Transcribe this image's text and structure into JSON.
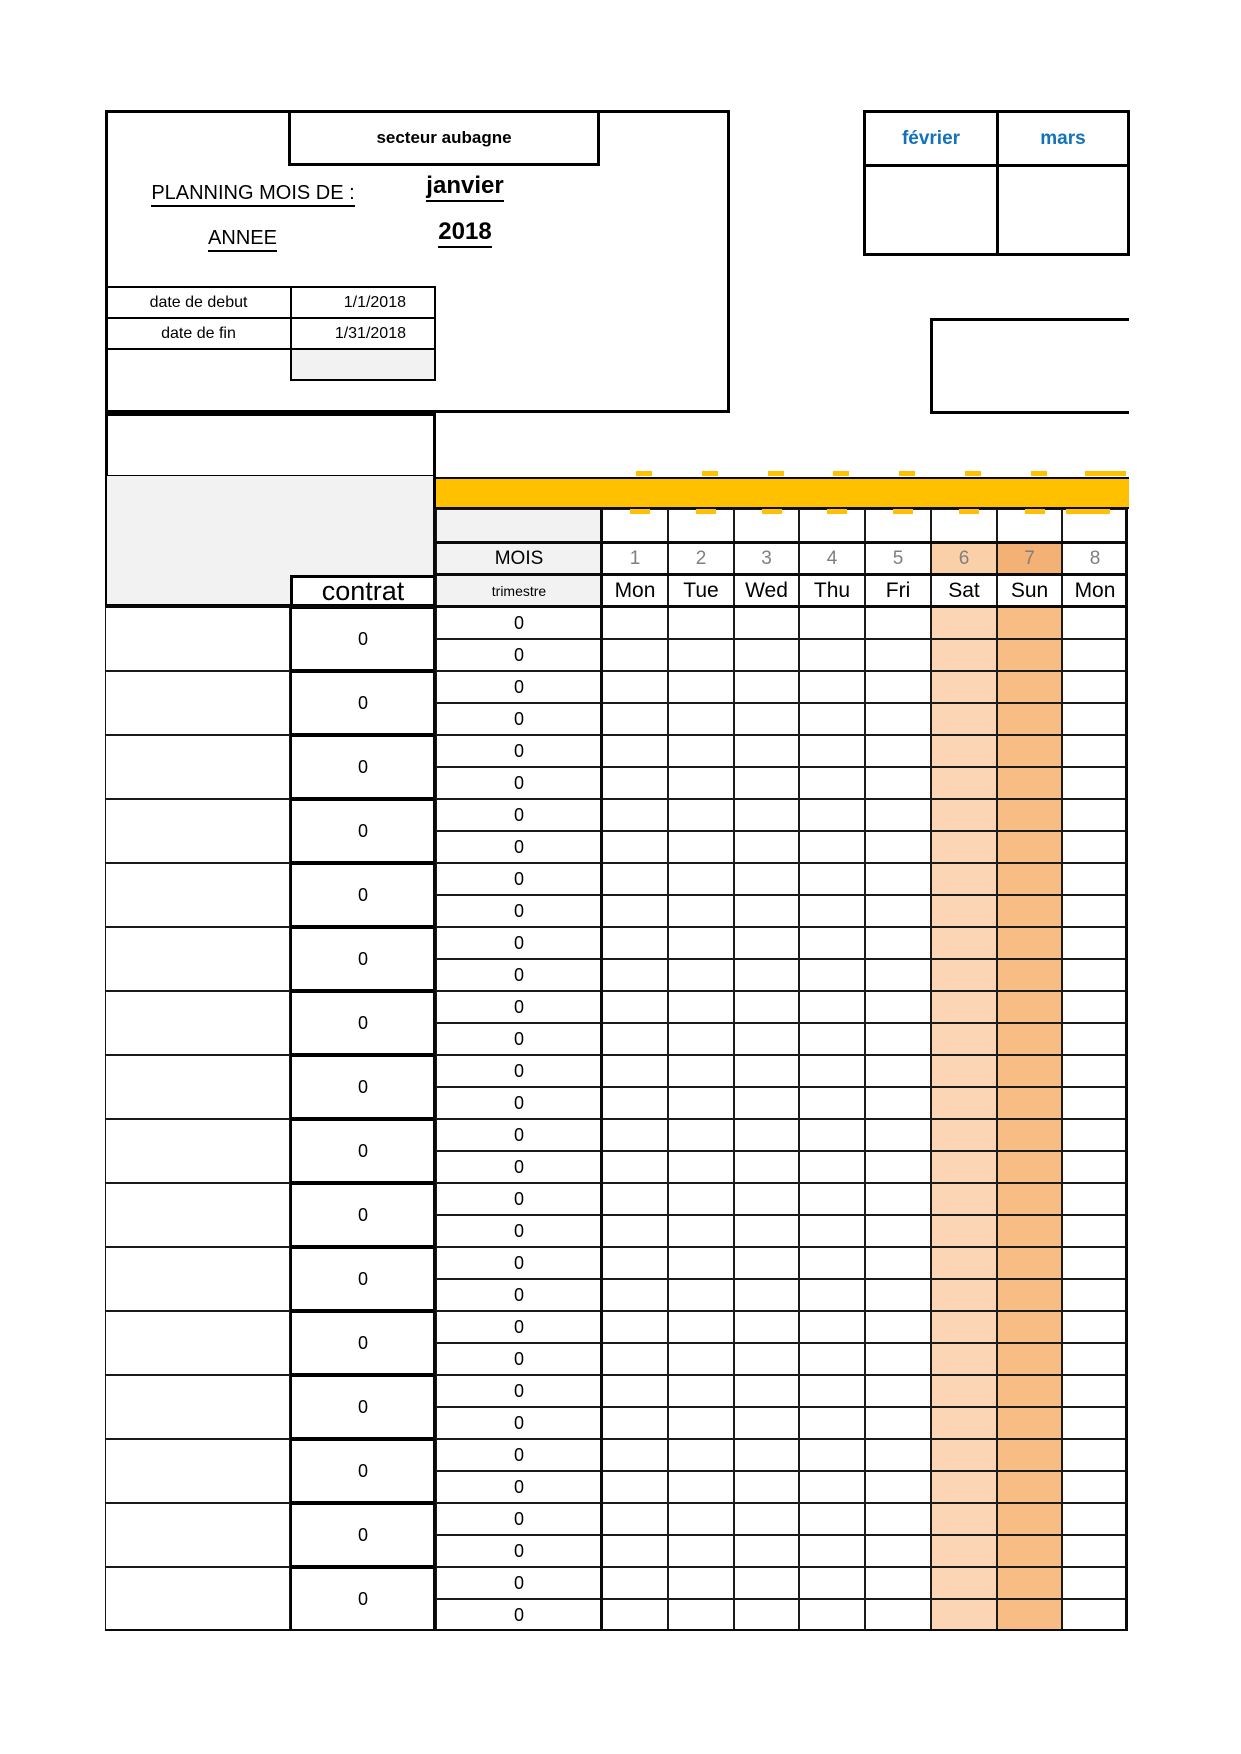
{
  "sheet": {
    "sector": "secteur aubagne",
    "planning_label": "PLANNING MOIS DE :",
    "annee_label": "ANNEE",
    "month": "janvier",
    "year": "2018",
    "date_rows": [
      {
        "label": "date de debut",
        "value": "1/1/2018"
      },
      {
        "label": "date de fin",
        "value": "1/31/2018"
      }
    ],
    "next_months": [
      "février",
      "mars"
    ],
    "contrat_label": "contrat",
    "mois_label": "MOIS",
    "trimestre_label": "trimestre",
    "day_numbers": [
      "1",
      "2",
      "3",
      "4",
      "5",
      "6",
      "7",
      "8"
    ],
    "day_names": [
      "Mon",
      "Tue",
      "Wed",
      "Thu",
      "Fri",
      "Sat",
      "Sun",
      "Mon"
    ],
    "weekend_day_indexes": [
      5,
      6
    ],
    "rows": [
      {
        "contrat": "0",
        "values": [
          "0",
          "0"
        ]
      },
      {
        "contrat": "0",
        "values": [
          "0",
          "0"
        ]
      },
      {
        "contrat": "0",
        "values": [
          "0",
          "0"
        ]
      },
      {
        "contrat": "0",
        "values": [
          "0",
          "0"
        ]
      },
      {
        "contrat": "0",
        "values": [
          "0",
          "0"
        ]
      },
      {
        "contrat": "0",
        "values": [
          "0",
          "0"
        ]
      },
      {
        "contrat": "0",
        "values": [
          "0",
          "0"
        ]
      },
      {
        "contrat": "0",
        "values": [
          "0",
          "0"
        ]
      },
      {
        "contrat": "0",
        "values": [
          "0",
          "0"
        ]
      },
      {
        "contrat": "0",
        "values": [
          "0",
          "0"
        ]
      },
      {
        "contrat": "0",
        "values": [
          "0",
          "0"
        ]
      },
      {
        "contrat": "0",
        "values": [
          "0",
          "0"
        ]
      },
      {
        "contrat": "0",
        "values": [
          "0",
          "0"
        ]
      },
      {
        "contrat": "0",
        "values": [
          "0",
          "0"
        ]
      },
      {
        "contrat": "0",
        "values": [
          "0",
          "0"
        ]
      },
      {
        "contrat": "0",
        "values": [
          "0",
          "0"
        ]
      }
    ],
    "colors": {
      "band_yellow": "#FFC000",
      "weekend_light": "#FBD5B4",
      "weekend_dark": "#F8BC85",
      "weekend_num_light": "#FAD0A8",
      "weekend_num_dark": "#F4B175",
      "header_gray": "#F2F2F2",
      "month_blue": "#1272BC",
      "muted_gray": "#7F7F7F"
    }
  }
}
